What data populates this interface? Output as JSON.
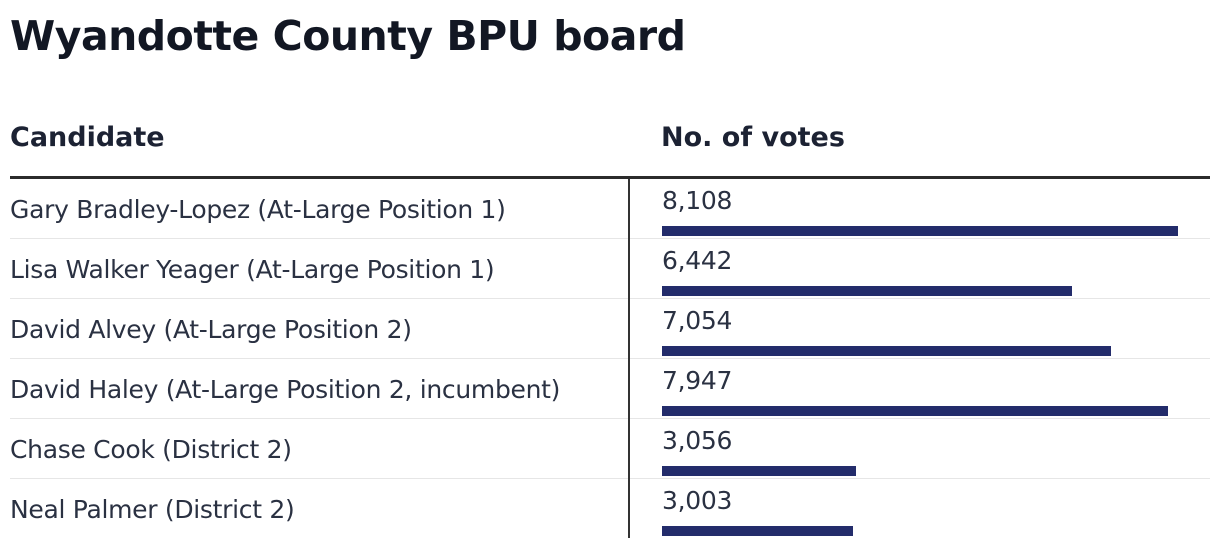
{
  "title": "Wyandotte County BPU board",
  "headers": {
    "candidate": "Candidate",
    "votes": "No. of votes"
  },
  "colors": {
    "bar": "#232c6b",
    "text": "#1c2233"
  },
  "rows": [
    {
      "name": "Gary Bradley-Lopez (At-Large Position 1)",
      "votes": 8108,
      "label": "8,108"
    },
    {
      "name": "Lisa Walker Yeager (At-Large Position 1)",
      "votes": 6442,
      "label": "6,442"
    },
    {
      "name": "David Alvey (At-Large Position 2)",
      "votes": 7054,
      "label": "7,054"
    },
    {
      "name": "David Haley (At-Large Position 2, incumbent)",
      "votes": 7947,
      "label": "7,947"
    },
    {
      "name": "Chase Cook (District 2)",
      "votes": 3056,
      "label": "3,056"
    },
    {
      "name": "Neal Palmer (District 2)",
      "votes": 3003,
      "label": "3,003"
    }
  ],
  "chart_data": {
    "type": "bar",
    "orientation": "horizontal",
    "title": "Wyandotte County BPU board",
    "xlabel": "No. of votes",
    "ylabel": "Candidate",
    "categories": [
      "Gary Bradley-Lopez (At-Large Position 1)",
      "Lisa Walker Yeager (At-Large Position 1)",
      "David Alvey (At-Large Position 2)",
      "David Haley (At-Large Position 2, incumbent)",
      "Chase Cook (District 2)",
      "Neal Palmer (District 2)"
    ],
    "values": [
      8108,
      6442,
      7054,
      7947,
      3056,
      3003
    ],
    "grid": false,
    "legend": null
  }
}
